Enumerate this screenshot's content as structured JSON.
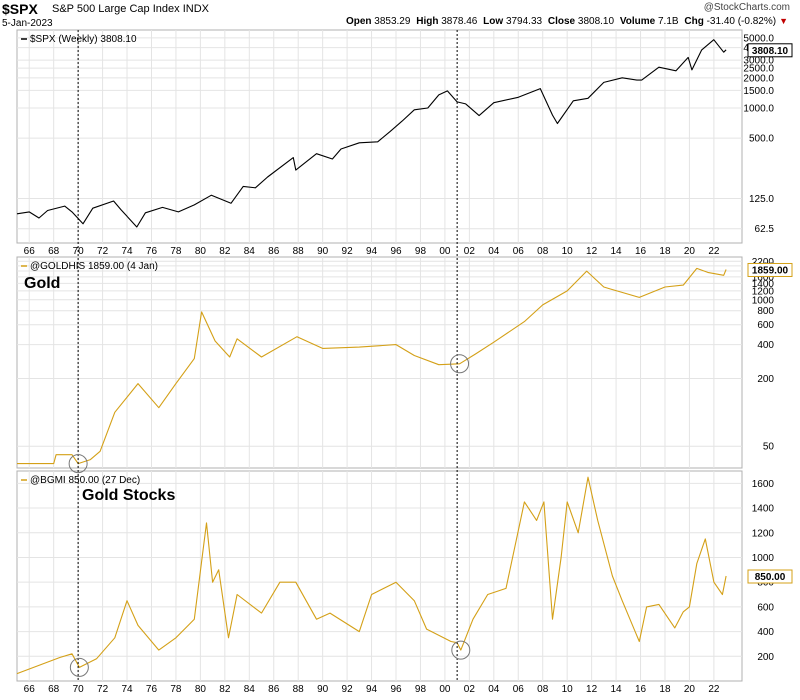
{
  "header": {
    "symbol": "$SPX",
    "name": "S&P 500 Large Cap Index",
    "exchange": "INDX",
    "date": "5-Jan-2023",
    "watermark": "@StockCharts.com",
    "quote": {
      "open_label": "Open",
      "open": "3853.29",
      "high_label": "High",
      "high": "3878.46",
      "low_label": "Low",
      "low": "3794.33",
      "close_label": "Close",
      "close": "3808.10",
      "volume_label": "Volume",
      "volume": "7.1B",
      "chg_label": "Chg",
      "chg": "-31.40 (-0.82%)"
    }
  },
  "colors": {
    "spx": "#000000",
    "gold": "#d4a017",
    "grid": "#e4e4e4",
    "frame": "#b0b0b0",
    "marker": "#777777"
  },
  "chart_data": [
    {
      "type": "line",
      "legend": "$SPX (Weekly) 3808.10",
      "last_value_label": "3808.10",
      "y_scale": "log",
      "ylim": [
        45,
        6000
      ],
      "y_ticks": [
        {
          "v": 5000,
          "label": "5000.0"
        },
        {
          "v": 4000,
          "label": "4000.0"
        },
        {
          "v": 3000,
          "label": "3000.0"
        },
        {
          "v": 2500,
          "label": "2500.0"
        },
        {
          "v": 2000,
          "label": "2000.0"
        },
        {
          "v": 1500,
          "label": "1500.0"
        },
        {
          "v": 1000,
          "label": "1000.0"
        },
        {
          "v": 500,
          "label": "500.0"
        },
        {
          "v": 125,
          "label": "125.0"
        },
        {
          "v": 62.5,
          "label": "62.5"
        }
      ],
      "x_tick_labels": [
        "66",
        "68",
        "70",
        "72",
        "74",
        "76",
        "78",
        "80",
        "82",
        "84",
        "86",
        "88",
        "90",
        "92",
        "94",
        "96",
        "98",
        "00",
        "02",
        "04",
        "06",
        "08",
        "10",
        "12",
        "14",
        "16",
        "18",
        "20",
        "22"
      ],
      "x": [
        1965.0,
        1966.0,
        1966.8,
        1967.5,
        1968.9,
        1969.5,
        1970.4,
        1971.2,
        1972.9,
        1973.5,
        1974.8,
        1975.5,
        1976.9,
        1978.2,
        1979.5,
        1980.9,
        1982.5,
        1983.5,
        1984.5,
        1985.5,
        1987.6,
        1987.8,
        1989.5,
        1990.8,
        1991.5,
        1993.0,
        1994.5,
        1995.5,
        1996.5,
        1997.5,
        1998.6,
        1999.5,
        2000.2,
        2001.0,
        2001.7,
        2002.8,
        2004.0,
        2006.0,
        2007.8,
        2008.8,
        2009.2,
        2010.5,
        2011.7,
        2013.0,
        2014.5,
        2015.7,
        2016.1,
        2017.5,
        2018.9,
        2019.9,
        2020.2,
        2021.0,
        2021.99,
        2022.8,
        2023.0
      ],
      "values": [
        88,
        92,
        80,
        95,
        105,
        92,
        70,
        100,
        118,
        97,
        65,
        90,
        102,
        92,
        108,
        135,
        112,
        165,
        160,
        205,
        320,
        240,
        350,
        310,
        390,
        450,
        460,
        580,
        740,
        960,
        1000,
        1350,
        1480,
        1150,
        1100,
        840,
        1130,
        1280,
        1560,
        850,
        700,
        1180,
        1250,
        1800,
        2000,
        1900,
        1900,
        2550,
        2350,
        3200,
        2400,
        3800,
        4800,
        3600,
        3808
      ]
    },
    {
      "type": "line",
      "legend": "@GOLDHIS 1859.00 (4 Jan)",
      "last_value_label": "1859.00",
      "annotation": "Gold",
      "y_scale": "log",
      "ylim": [
        32,
        2400
      ],
      "y_ticks": [
        {
          "v": 2200,
          "label": "2200"
        },
        {
          "v": 2000,
          "label": "2000"
        },
        {
          "v": 1800,
          "label": "1800"
        },
        {
          "v": 1600,
          "label": "1600"
        },
        {
          "v": 1400,
          "label": "1400"
        },
        {
          "v": 1200,
          "label": "1200"
        },
        {
          "v": 1000,
          "label": "1000"
        },
        {
          "v": 800,
          "label": "800"
        },
        {
          "v": 600,
          "label": "600"
        },
        {
          "v": 400,
          "label": "400"
        },
        {
          "v": 200,
          "label": "200"
        },
        {
          "v": 50,
          "label": "50"
        }
      ],
      "x": [
        1965.0,
        1968.0,
        1968.2,
        1969.5,
        1970.0,
        1971.0,
        1971.8,
        1973.0,
        1974.9,
        1976.6,
        1978.0,
        1979.5,
        1980.1,
        1981.2,
        1982.4,
        1983.0,
        1985.0,
        1987.9,
        1990.0,
        1993.0,
        1996.0,
        1997.5,
        1999.5,
        2001.2,
        2002.5,
        2004.0,
        2006.5,
        2008.0,
        2010.0,
        2011.6,
        2013.0,
        2013.5,
        2015.9,
        2018.0,
        2019.5,
        2020.6,
        2021.5,
        2022.8,
        2023.0
      ],
      "values": [
        35,
        35,
        42,
        42,
        35,
        38,
        45,
        100,
        180,
        110,
        180,
        300,
        780,
        430,
        310,
        450,
        310,
        470,
        370,
        380,
        400,
        320,
        265,
        270,
        330,
        420,
        640,
        900,
        1200,
        1800,
        1300,
        1250,
        1050,
        1300,
        1350,
        1900,
        1750,
        1650,
        1859
      ]
    },
    {
      "type": "line",
      "legend": "@BGMI 850.00 (27 Dec)",
      "last_value_label": "850.00",
      "annotation": "Gold Stocks",
      "y_scale": "linear",
      "ylim": [
        0,
        1700
      ],
      "y_ticks": [
        {
          "v": 1600,
          "label": "1600"
        },
        {
          "v": 1400,
          "label": "1400"
        },
        {
          "v": 1200,
          "label": "1200"
        },
        {
          "v": 1000,
          "label": "1000"
        },
        {
          "v": 800,
          "label": "800"
        },
        {
          "v": 600,
          "label": "600"
        },
        {
          "v": 400,
          "label": "400"
        },
        {
          "v": 200,
          "label": "200"
        }
      ],
      "x_tick_labels": [
        "66",
        "68",
        "70",
        "72",
        "74",
        "76",
        "78",
        "80",
        "82",
        "84",
        "86",
        "88",
        "90",
        "92",
        "94",
        "96",
        "98",
        "00",
        "02",
        "04",
        "06",
        "08",
        "10",
        "12",
        "14",
        "16",
        "18",
        "20",
        "22"
      ],
      "x": [
        1965.0,
        1968.5,
        1969.5,
        1970.1,
        1971.5,
        1973.0,
        1974.0,
        1974.9,
        1976.6,
        1978.0,
        1979.5,
        1980.5,
        1981.0,
        1981.5,
        1982.3,
        1983.0,
        1985.0,
        1986.5,
        1987.8,
        1989.5,
        1990.6,
        1993.0,
        1994.0,
        1996.0,
        1997.5,
        1998.5,
        2000.5,
        2001.0,
        2001.3,
        2002.3,
        2003.5,
        2005.0,
        2006.5,
        2007.5,
        2008.1,
        2008.8,
        2009.5,
        2010.0,
        2010.9,
        2011.7,
        2012.5,
        2013.7,
        2014.5,
        2015.9,
        2016.5,
        2017.5,
        2018.8,
        2019.5,
        2020.0,
        2020.6,
        2021.3,
        2022.0,
        2022.7,
        2023.0
      ],
      "values": [
        60,
        190,
        220,
        110,
        180,
        350,
        650,
        450,
        250,
        350,
        500,
        1280,
        800,
        900,
        350,
        700,
        550,
        800,
        800,
        500,
        550,
        400,
        700,
        800,
        650,
        420,
        320,
        310,
        250,
        500,
        700,
        750,
        1450,
        1300,
        1450,
        500,
        1000,
        1450,
        1200,
        1650,
        1300,
        850,
        650,
        320,
        600,
        620,
        430,
        560,
        600,
        950,
        1150,
        800,
        700,
        850
      ]
    }
  ]
}
